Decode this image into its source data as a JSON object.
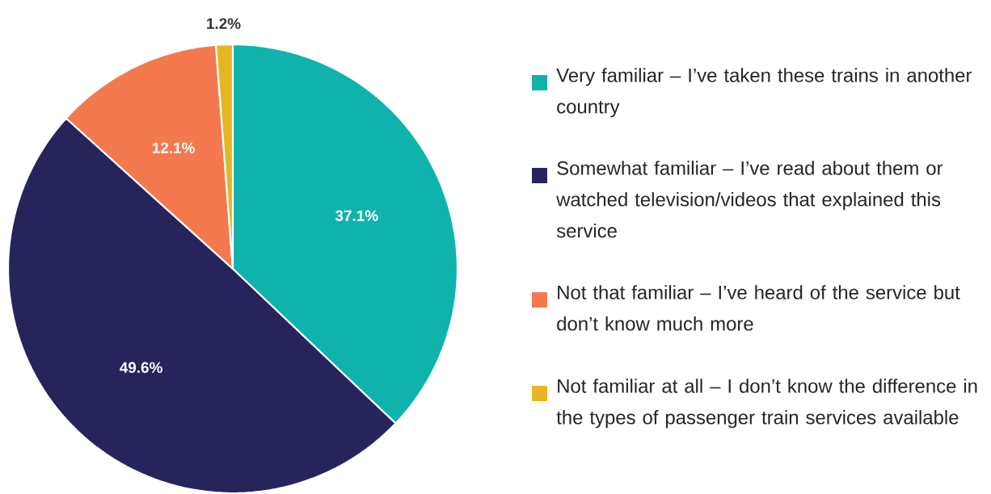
{
  "chart_data": {
    "type": "pie",
    "categories": [
      "Very familiar – I’ve taken these trains in another country",
      "Somewhat familiar – I’ve read about them or watched television/videos that explained this service",
      "Not that familiar – I’ve heard of the service but don’t know much more",
      "Not familiar at all – I don’t know the difference in the types of passenger train services available"
    ],
    "values": [
      37.1,
      49.6,
      12.1,
      1.2
    ],
    "colors": [
      "#0fb3ac",
      "#27245c",
      "#f4794f",
      "#e5b622"
    ],
    "value_labels": [
      "37.1%",
      "49.6%",
      "12.1%",
      "1.2%"
    ],
    "legend": "right"
  }
}
